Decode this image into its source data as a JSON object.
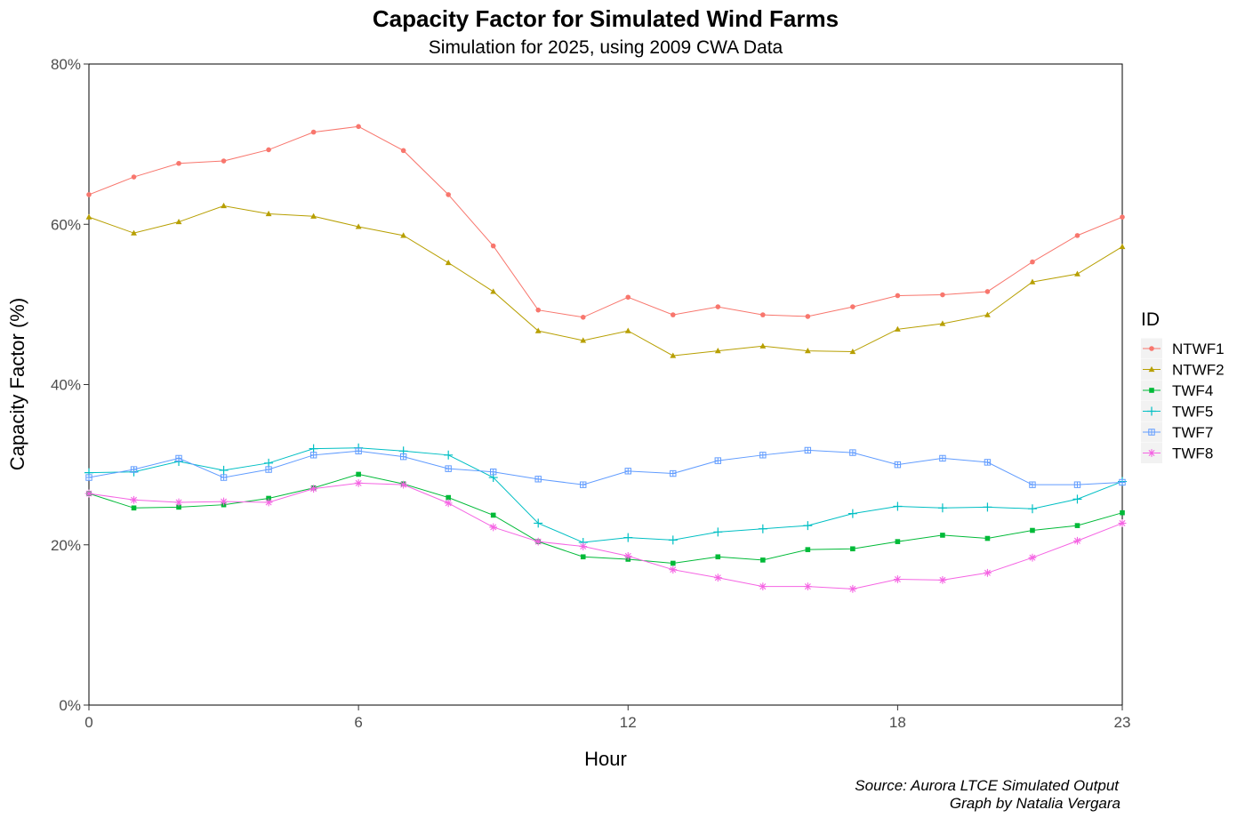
{
  "chart_data": {
    "type": "line",
    "title": "Capacity Factor for Simulated Wind Farms",
    "subtitle": "Simulation for 2025, using 2009 CWA Data",
    "xlabel": "Hour",
    "ylabel": "Capacity Factor (%)",
    "xlim": [
      0,
      23
    ],
    "ylim": [
      0,
      80
    ],
    "x_ticks": [
      0,
      6,
      12,
      18,
      23
    ],
    "x_tick_labels": [
      "0",
      "6",
      "12",
      "18",
      "23"
    ],
    "y_ticks": [
      0,
      20,
      40,
      60,
      80
    ],
    "y_tick_labels": [
      "0%",
      "20%",
      "40%",
      "60%",
      "80%"
    ],
    "grid": false,
    "legend": {
      "title": "ID",
      "position": "right"
    },
    "x": [
      0,
      1,
      2,
      3,
      4,
      5,
      6,
      7,
      8,
      9,
      10,
      11,
      12,
      13,
      14,
      15,
      16,
      17,
      18,
      19,
      20,
      21,
      22,
      23
    ],
    "series": [
      {
        "name": "NTWF1",
        "color": "#F8766D",
        "marker": "circle",
        "values": [
          63.7,
          65.9,
          67.6,
          67.9,
          69.3,
          71.5,
          72.2,
          69.2,
          63.7,
          57.3,
          49.3,
          48.4,
          50.9,
          48.7,
          49.7,
          48.7,
          48.5,
          49.7,
          51.1,
          51.2,
          51.6,
          55.3,
          58.6,
          60.9
        ]
      },
      {
        "name": "NTWF2",
        "color": "#B79F00",
        "marker": "triangle",
        "values": [
          60.9,
          58.9,
          60.3,
          62.3,
          61.3,
          61.0,
          59.7,
          58.6,
          55.2,
          51.6,
          46.7,
          45.5,
          46.7,
          43.6,
          44.2,
          44.8,
          44.2,
          44.1,
          46.9,
          47.6,
          48.7,
          52.8,
          53.8,
          57.2
        ]
      },
      {
        "name": "TWF4",
        "color": "#00BA38",
        "marker": "square",
        "values": [
          26.4,
          24.6,
          24.7,
          25.0,
          25.8,
          27.1,
          28.8,
          27.6,
          25.9,
          23.7,
          20.4,
          18.5,
          18.2,
          17.7,
          18.5,
          18.1,
          19.4,
          19.5,
          20.4,
          21.2,
          20.8,
          21.8,
          22.4,
          24.0
        ]
      },
      {
        "name": "TWF5",
        "color": "#00BFC4",
        "marker": "plus",
        "values": [
          29.0,
          29.1,
          30.4,
          29.3,
          30.2,
          32.0,
          32.1,
          31.7,
          31.2,
          28.4,
          22.7,
          20.3,
          20.9,
          20.6,
          21.6,
          22.0,
          22.4,
          23.9,
          24.8,
          24.6,
          24.7,
          24.5,
          25.7,
          27.9
        ]
      },
      {
        "name": "TWF7",
        "color": "#619CFF",
        "marker": "square-cross",
        "values": [
          28.4,
          29.4,
          30.8,
          28.4,
          29.4,
          31.2,
          31.7,
          31.0,
          29.5,
          29.1,
          28.2,
          27.5,
          29.2,
          28.9,
          30.5,
          31.2,
          31.8,
          31.5,
          30.0,
          30.8,
          30.3,
          27.5,
          27.5,
          27.8
        ]
      },
      {
        "name": "TWF8",
        "color": "#F564E3",
        "marker": "asterisk",
        "values": [
          26.4,
          25.6,
          25.3,
          25.4,
          25.3,
          27.0,
          27.7,
          27.5,
          25.2,
          22.2,
          20.4,
          19.8,
          18.6,
          16.9,
          15.9,
          14.8,
          14.8,
          14.5,
          15.7,
          15.6,
          16.5,
          18.4,
          20.5,
          22.7
        ]
      }
    ],
    "caption_lines": [
      "Source: Aurora LTCE Simulated Output",
      "Graph by Natalia Vergara"
    ]
  }
}
